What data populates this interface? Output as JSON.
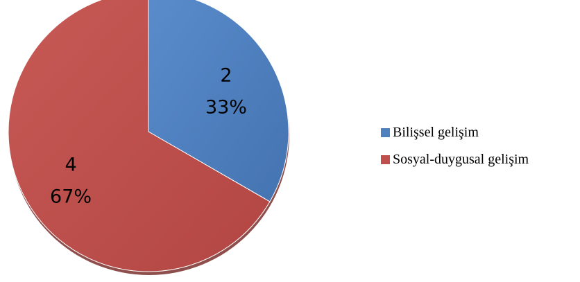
{
  "chart_data": {
    "type": "pie",
    "categories": [
      "Bilişsel gelişim",
      "Sosyal-duygusal gelişim"
    ],
    "values": [
      2,
      4
    ],
    "percent_labels": [
      "33%",
      "67%"
    ],
    "value_labels": [
      "2",
      "4"
    ],
    "colors": [
      "#4f81bd",
      "#c0504d"
    ],
    "title": "",
    "legend_position": "right",
    "start_angle": "12 o'clock",
    "direction": "clockwise"
  }
}
